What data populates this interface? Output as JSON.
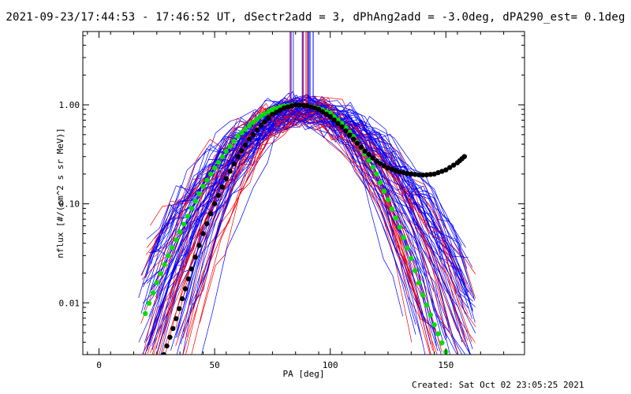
{
  "title": "2021-09-23/17:44:53 - 17:46:52 UT, dSectr2add = 3, dPhAng2add = -3.0deg, dPA290_est=  0.1deg",
  "created": "Created: Sat Oct 02 23:05:25 2021",
  "colors": {
    "blue": "#0000ff",
    "red": "#ff0000",
    "green": "#00e000",
    "black": "#000000"
  },
  "chart_data": {
    "type": "line",
    "xlabel": "PA [deg]",
    "ylabel": "nflux [#/(cm^2 s sr MeV)]",
    "xlim": [
      -7,
      184
    ],
    "ylim": [
      0.003,
      5.5
    ],
    "yscale": "log",
    "xticks": [
      0,
      50,
      100,
      150
    ],
    "xtick_labels": [
      "0",
      "50",
      "100",
      "150"
    ],
    "yticks": [
      0.01,
      0.1,
      1.0
    ],
    "ytick_labels": [
      "0.01",
      "0.10",
      "1.00"
    ],
    "grid": false,
    "series": [
      {
        "style": "green-dots",
        "x": [
          20,
          25,
          30,
          35,
          40,
          45,
          50,
          55,
          60,
          65,
          70,
          75,
          80,
          85,
          90,
          95,
          100,
          105,
          110,
          115,
          120,
          125,
          130,
          135,
          140,
          145,
          150
        ],
        "y": [
          0.0078,
          0.016,
          0.03,
          0.052,
          0.09,
          0.15,
          0.23,
          0.34,
          0.48,
          0.62,
          0.77,
          0.9,
          0.97,
          1.0,
          0.98,
          0.92,
          0.82,
          0.65,
          0.48,
          0.32,
          0.2,
          0.11,
          0.058,
          0.028,
          0.012,
          0.006,
          0.0032
        ]
      },
      {
        "style": "black-dots",
        "x": [
          28,
          32,
          36,
          40,
          45,
          50,
          55,
          60,
          65,
          70,
          75,
          80,
          85,
          90,
          95,
          100,
          105,
          110,
          115,
          120,
          125,
          130,
          135,
          140,
          145,
          150,
          155,
          158
        ],
        "y": [
          0.003,
          0.0055,
          0.011,
          0.022,
          0.05,
          0.1,
          0.18,
          0.3,
          0.45,
          0.62,
          0.8,
          0.93,
          1.0,
          0.98,
          0.9,
          0.76,
          0.6,
          0.45,
          0.34,
          0.27,
          0.23,
          0.21,
          0.2,
          0.195,
          0.2,
          0.22,
          0.26,
          0.3
        ]
      }
    ]
  }
}
